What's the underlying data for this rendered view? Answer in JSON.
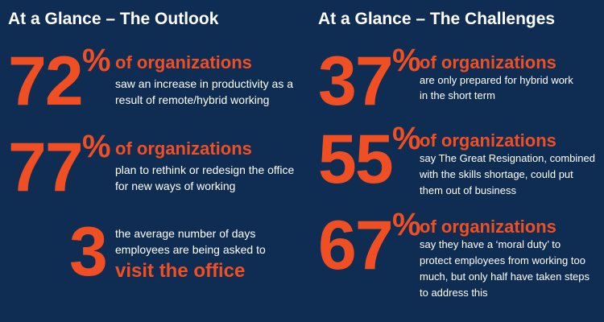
{
  "outlook": {
    "heading": "At a Glance – The Outlook",
    "stats": [
      {
        "number": "72",
        "percent": "%",
        "label": "of organizations",
        "lines": [
          "saw an increase in productivity as a",
          "result of remote/hybrid working"
        ]
      },
      {
        "number": "77",
        "percent": "%",
        "label": "of organizations",
        "lines": [
          "plan to rethink or redesign the office",
          "for new ways of working"
        ]
      },
      {
        "number": "3",
        "lines": [
          "the average number of days",
          "employees are being asked to"
        ],
        "highlight": "visit the office"
      }
    ]
  },
  "challenges": {
    "heading": "At a Glance – The Challenges",
    "stats": [
      {
        "number": "37",
        "percent": "%",
        "label": "of organizations",
        "lines": [
          "are only prepared for hybrid work",
          " in the short term"
        ]
      },
      {
        "number": "55",
        "percent": "%",
        "label": "of organizations",
        "lines": [
          "say The Great Resignation, combined",
          "with the skills shortage, could put",
          "them out of business"
        ]
      },
      {
        "number": "67",
        "percent": "%",
        "label": "of organizations",
        "lines": [
          "say they have a ‘moral duty’ to",
          "protect employees from working too",
          "much, but only half have taken steps",
          "to address this"
        ]
      }
    ]
  },
  "colors": {
    "background": "#0f2d52",
    "accent": "#f04e23",
    "text": "#ffffff"
  }
}
